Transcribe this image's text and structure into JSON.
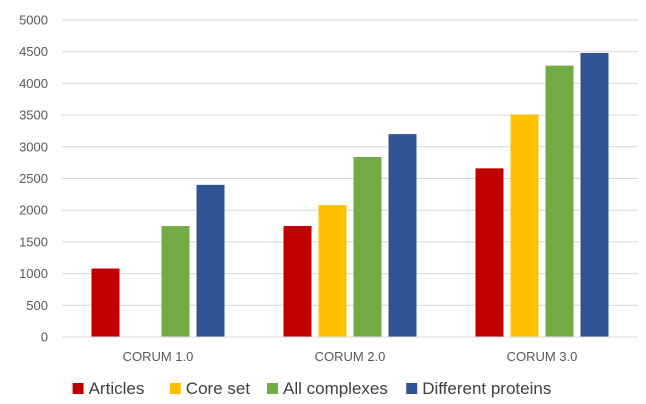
{
  "chart_data": {
    "type": "bar",
    "categories": [
      "CORUM 1.0",
      "CORUM 2.0",
      "CORUM 3.0"
    ],
    "series": [
      {
        "name": "Articles",
        "color": "#c00000",
        "values": [
          1080,
          1750,
          2660
        ]
      },
      {
        "name": "Core set",
        "color": "#ffc000",
        "values": [
          0,
          2080,
          3510
        ]
      },
      {
        "name": "All complexes",
        "color": "#70ad47",
        "values": [
          1750,
          2840,
          4280
        ]
      },
      {
        "name": "Different proteins",
        "color": "#2f5597",
        "values": [
          2400,
          3200,
          4480
        ]
      }
    ],
    "ylim": [
      0,
      5000
    ],
    "yticks": [
      "0",
      "500",
      "1000",
      "1500",
      "2000",
      "2500",
      "3000",
      "3500",
      "4000",
      "4500",
      "5000"
    ],
    "grid": true,
    "legend": "bottom"
  }
}
